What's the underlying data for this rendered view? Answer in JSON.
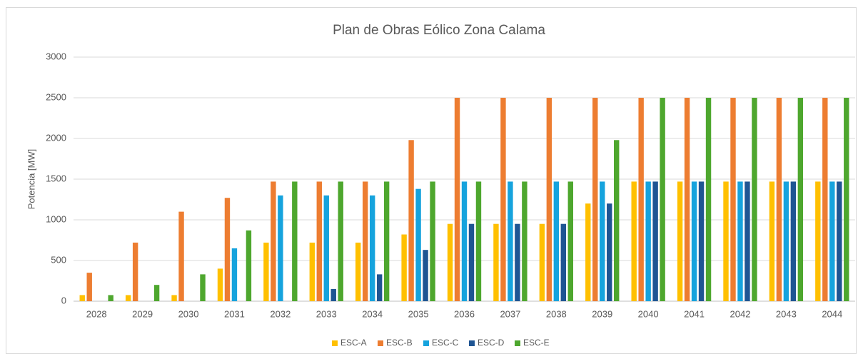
{
  "chart_data": {
    "type": "bar",
    "title": "Plan de Obras Eólico Zona Calama",
    "ylabel": "Potencia [MW]",
    "categories": [
      "2028",
      "2029",
      "2030",
      "2031",
      "2032",
      "2033",
      "2034",
      "2035",
      "2036",
      "2037",
      "2038",
      "2039",
      "2040",
      "2041",
      "2042",
      "2043",
      "2044"
    ],
    "series": [
      {
        "name": "ESC-A",
        "color": "#ffc000",
        "values": [
          75,
          75,
          75,
          400,
          720,
          720,
          720,
          820,
          950,
          950,
          950,
          1200,
          1470,
          1470,
          1470,
          1470,
          1470
        ]
      },
      {
        "name": "ESC-B",
        "color": "#ed7d31",
        "values": [
          350,
          720,
          1100,
          1270,
          1470,
          1470,
          1470,
          1980,
          2500,
          2500,
          2500,
          2500,
          2500,
          2500,
          2500,
          2500,
          2500
        ]
      },
      {
        "name": "ESC-C",
        "color": "#16a3dd",
        "values": [
          0,
          0,
          0,
          650,
          1300,
          1300,
          1300,
          1380,
          1470,
          1470,
          1470,
          1470,
          1470,
          1470,
          1470,
          1470,
          1470
        ]
      },
      {
        "name": "ESC-D",
        "color": "#1f5593",
        "values": [
          0,
          0,
          0,
          0,
          0,
          150,
          330,
          630,
          950,
          950,
          950,
          1200,
          1470,
          1470,
          1470,
          1470,
          1470
        ]
      },
      {
        "name": "ESC-E",
        "color": "#4ea72e",
        "values": [
          75,
          200,
          330,
          870,
          1470,
          1470,
          1470,
          1470,
          1470,
          1470,
          1470,
          1980,
          2500,
          2500,
          2500,
          2500,
          2500
        ]
      }
    ],
    "ylim": [
      0,
      3000
    ],
    "yticks": [
      0,
      500,
      1000,
      1500,
      2000,
      2500,
      3000
    ],
    "grid": true,
    "legend": "bottom"
  }
}
